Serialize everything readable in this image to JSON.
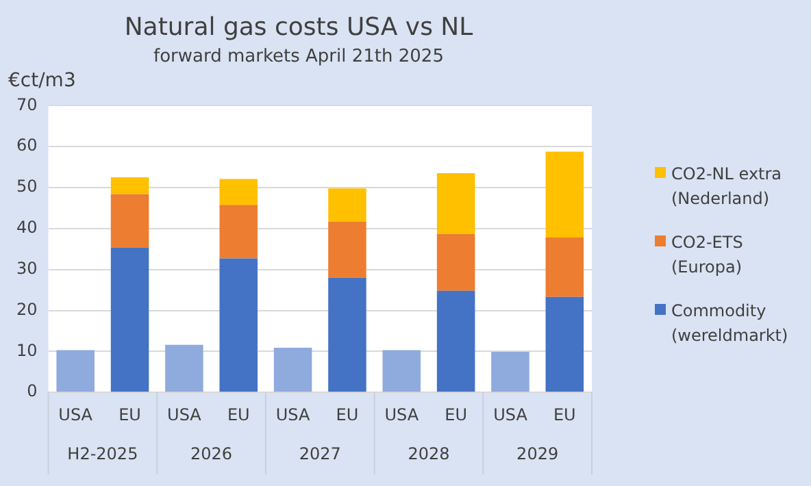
{
  "chart_data": {
    "type": "bar",
    "title": "Natural gas costs USA vs NL",
    "subtitle": "forward markets April 21th 2025",
    "ylabel": "€ct/m3",
    "categories": [
      "USA",
      "EU",
      "USA",
      "EU",
      "USA",
      "EU",
      "USA",
      "EU",
      "USA",
      "EU"
    ],
    "annotations": [
      "H2-2025",
      "2026",
      "2027",
      "2028",
      "2029"
    ],
    "stacked": true,
    "series": [
      {
        "name": "Commodity (wereldmarkt)",
        "color": "#4472c4",
        "colors": [
          "#8faadc",
          "#4472c4",
          "#8faadc",
          "#4472c4",
          "#8faadc",
          "#4472c4",
          "#8faadc",
          "#4472c4",
          "#8faadc",
          "#4472c4"
        ],
        "values": [
          10.3,
          35.4,
          11.6,
          32.7,
          10.9,
          28.0,
          10.3,
          24.8,
          9.9,
          23.3
        ]
      },
      {
        "name": "CO2-ETS (Europa)",
        "color": "#ed7d31",
        "values": [
          null,
          13.0,
          null,
          13.1,
          null,
          13.7,
          null,
          13.9,
          null,
          14.5
        ]
      },
      {
        "name": "CO2-NL extra (Nederland)",
        "color": "#ffc000",
        "values": [
          null,
          4.1,
          null,
          6.3,
          null,
          8.1,
          null,
          14.8,
          null,
          21.0
        ]
      }
    ],
    "ylim": [
      0,
      70
    ],
    "yticks": [
      0,
      10,
      20,
      30,
      40,
      50,
      60,
      70
    ],
    "grid": "y",
    "legend": "right"
  }
}
